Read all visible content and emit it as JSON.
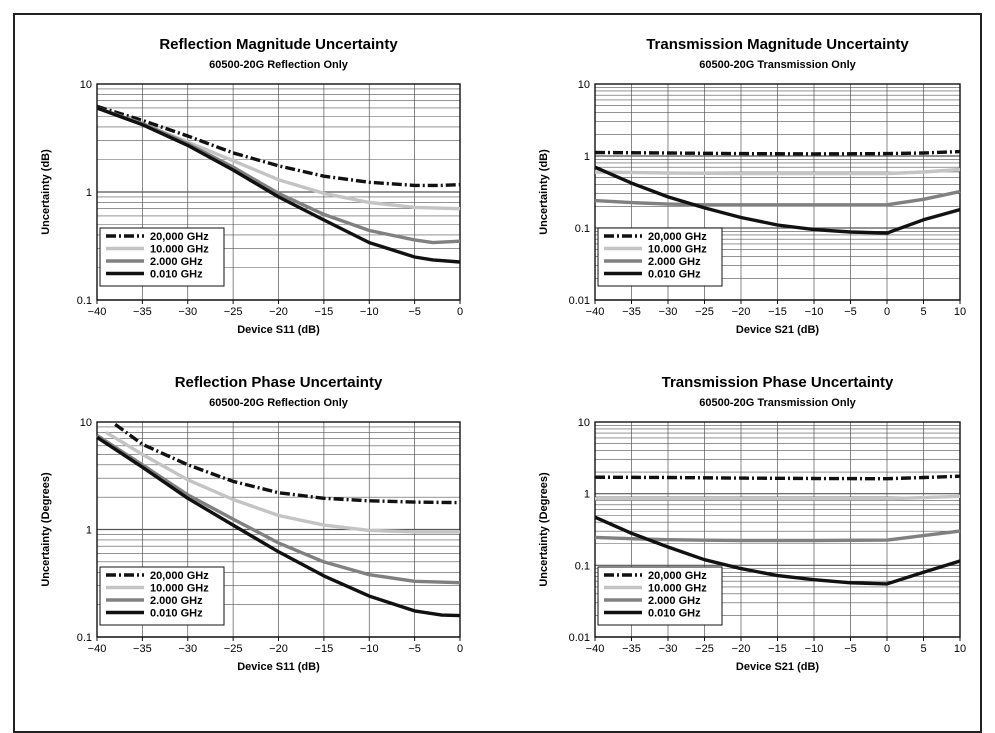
{
  "chart_data": [
    {
      "type": "line",
      "title": "Reflection Magnitude Uncertainty",
      "subtitle": "60500-20G Reflection Only",
      "xlabel": "Device S11 (dB)",
      "ylabel": "Uncertainty (dB)",
      "xlim": [
        -40,
        0
      ],
      "ylim": [
        0.1,
        10
      ],
      "yscale": "log",
      "xticks": [
        "-40",
        "-35",
        "-30",
        "-25",
        "-20",
        "-15",
        "-10",
        "-5",
        "0"
      ],
      "yticks": [
        "10",
        "1",
        "0.1"
      ],
      "grid": true,
      "legend_position": "bottom-left",
      "series": [
        {
          "name": "20,000 GHz",
          "style": "dashdot",
          "color": "#111111",
          "x": [
            -40,
            -35,
            -30,
            -25,
            -20,
            -15,
            -10,
            -5,
            -2,
            0
          ],
          "y": [
            6.2,
            4.6,
            3.3,
            2.3,
            1.75,
            1.4,
            1.23,
            1.15,
            1.15,
            1.17
          ]
        },
        {
          "name": "10.000 GHz",
          "style": "solid",
          "color": "#c4c4c4",
          "x": [
            -40,
            -35,
            -30,
            -25,
            -20,
            -15,
            -10,
            -5,
            0
          ],
          "y": [
            6.0,
            4.3,
            2.9,
            1.95,
            1.3,
            0.97,
            0.8,
            0.72,
            0.7
          ]
        },
        {
          "name": "2.000 GHz",
          "style": "solid",
          "color": "#808080",
          "x": [
            -40,
            -35,
            -30,
            -25,
            -20,
            -15,
            -10,
            -5,
            -3,
            0
          ],
          "y": [
            6.0,
            4.3,
            2.8,
            1.7,
            0.97,
            0.62,
            0.44,
            0.36,
            0.34,
            0.35
          ]
        },
        {
          "name": "0.010 GHz",
          "style": "solid",
          "color": "#111111",
          "x": [
            -40,
            -35,
            -30,
            -25,
            -20,
            -15,
            -10,
            -5,
            -3,
            0
          ],
          "y": [
            6.0,
            4.2,
            2.7,
            1.6,
            0.9,
            0.55,
            0.34,
            0.25,
            0.235,
            0.225
          ]
        }
      ]
    },
    {
      "type": "line",
      "title": "Transmission Magnitude Uncertainty",
      "subtitle": "60500-20G Transmission Only",
      "xlabel": "Device S21 (dB)",
      "ylabel": "Uncertainty (dB)",
      "xlim": [
        -40,
        10
      ],
      "ylim": [
        0.01,
        10
      ],
      "yscale": "log",
      "xticks": [
        "-40",
        "-35",
        "-30",
        "-25",
        "-20",
        "-15",
        "-10",
        "-5",
        "0",
        "5",
        "10"
      ],
      "yticks": [
        "10",
        "1",
        "0.1",
        "0.01"
      ],
      "grid": true,
      "legend_position": "bottom-left",
      "series": [
        {
          "name": "20,000 GHz",
          "style": "dashdot",
          "color": "#111111",
          "x": [
            -40,
            -30,
            -20,
            -10,
            0,
            5,
            10
          ],
          "y": [
            1.12,
            1.1,
            1.08,
            1.07,
            1.08,
            1.1,
            1.15
          ]
        },
        {
          "name": "10.000 GHz",
          "style": "solid",
          "color": "#c4c4c4",
          "x": [
            -40,
            -30,
            -20,
            -10,
            0,
            5,
            10
          ],
          "y": [
            0.6,
            0.58,
            0.57,
            0.57,
            0.57,
            0.6,
            0.65
          ]
        },
        {
          "name": "2.000 GHz",
          "style": "solid",
          "color": "#808080",
          "x": [
            -40,
            -35,
            -30,
            -25,
            -20,
            -10,
            0,
            5,
            10
          ],
          "y": [
            0.24,
            0.225,
            0.215,
            0.21,
            0.21,
            0.21,
            0.21,
            0.25,
            0.32
          ]
        },
        {
          "name": "0.010 GHz",
          "style": "solid",
          "color": "#111111",
          "x": [
            -40,
            -35,
            -30,
            -25,
            -20,
            -15,
            -10,
            -5,
            0,
            5,
            10
          ],
          "y": [
            0.7,
            0.42,
            0.27,
            0.19,
            0.14,
            0.11,
            0.095,
            0.088,
            0.085,
            0.13,
            0.18
          ]
        }
      ]
    },
    {
      "type": "line",
      "title": "Reflection Phase Uncertainty",
      "subtitle": "60500-20G  Reflection Only",
      "xlabel": "Device S11 (dB)",
      "ylabel": "Uncertainty (Degrees)",
      "xlim": [
        -40,
        0
      ],
      "ylim": [
        0.1,
        10
      ],
      "yscale": "log",
      "xticks": [
        "-40",
        "-35",
        "-30",
        "-25",
        "-20",
        "-15",
        "-10",
        "-5",
        "0"
      ],
      "yticks": [
        "10",
        "1",
        "0.1"
      ],
      "grid": true,
      "legend_position": "bottom-left",
      "series": [
        {
          "name": "20,000 GHz",
          "style": "dashdot",
          "color": "#111111",
          "x": [
            -38,
            -35,
            -30,
            -25,
            -20,
            -15,
            -10,
            -5,
            0
          ],
          "y": [
            9.5,
            6.2,
            4.0,
            2.8,
            2.2,
            1.95,
            1.85,
            1.8,
            1.78
          ]
        },
        {
          "name": "10.000 GHz",
          "style": "solid",
          "color": "#c4c4c4",
          "x": [
            -39,
            -35,
            -30,
            -25,
            -20,
            -15,
            -10,
            -5,
            0
          ],
          "y": [
            8.0,
            5.0,
            2.9,
            1.9,
            1.35,
            1.1,
            0.98,
            0.95,
            0.95
          ]
        },
        {
          "name": "2.000 GHz",
          "style": "solid",
          "color": "#808080",
          "x": [
            -40,
            -35,
            -30,
            -25,
            -20,
            -15,
            -10,
            -5,
            0
          ],
          "y": [
            7.5,
            4.0,
            2.1,
            1.25,
            0.75,
            0.5,
            0.38,
            0.33,
            0.32
          ]
        },
        {
          "name": "0.010 GHz",
          "style": "solid",
          "color": "#111111",
          "x": [
            -40,
            -35,
            -30,
            -25,
            -20,
            -15,
            -10,
            -5,
            -2,
            0
          ],
          "y": [
            7.2,
            3.8,
            1.95,
            1.1,
            0.62,
            0.37,
            0.24,
            0.175,
            0.16,
            0.158
          ]
        }
      ]
    },
    {
      "type": "line",
      "title": "Transmission Phase Uncertainty",
      "subtitle": "60500-20G Transmission Only",
      "xlabel": "Device S21 (dB)",
      "ylabel": "Uncertainty (Degrees)",
      "xlim": [
        -40,
        10
      ],
      "ylim": [
        0.01,
        10
      ],
      "yscale": "log",
      "xticks": [
        "-40",
        "-35",
        "-30",
        "-25",
        "-20",
        "-15",
        "-10",
        "-5",
        "0",
        "5",
        "10"
      ],
      "yticks": [
        "10",
        "1",
        "0.1",
        "0.01"
      ],
      "grid": true,
      "legend_position": "bottom-left",
      "series": [
        {
          "name": "20,000 GHz",
          "style": "dashdot",
          "color": "#111111",
          "x": [
            -40,
            -30,
            -20,
            -10,
            0,
            5,
            10
          ],
          "y": [
            1.7,
            1.68,
            1.65,
            1.63,
            1.62,
            1.68,
            1.75
          ]
        },
        {
          "name": "10.000 GHz",
          "style": "solid",
          "color": "#c4c4c4",
          "x": [
            -40,
            -30,
            -20,
            -10,
            0,
            5,
            10
          ],
          "y": [
            0.85,
            0.85,
            0.85,
            0.85,
            0.85,
            0.88,
            0.92
          ]
        },
        {
          "name": "2.000 GHz",
          "style": "solid",
          "color": "#808080",
          "x": [
            -40,
            -35,
            -30,
            -25,
            -20,
            -10,
            0,
            5,
            10
          ],
          "y": [
            0.245,
            0.235,
            0.228,
            0.224,
            0.222,
            0.222,
            0.225,
            0.26,
            0.3
          ]
        },
        {
          "name": "0.010 GHz",
          "style": "solid",
          "color": "#111111",
          "x": [
            -40,
            -35,
            -30,
            -25,
            -20,
            -15,
            -10,
            -5,
            0,
            5,
            10
          ],
          "y": [
            0.47,
            0.28,
            0.18,
            0.12,
            0.09,
            0.072,
            0.063,
            0.057,
            0.055,
            0.08,
            0.115
          ]
        }
      ]
    }
  ]
}
